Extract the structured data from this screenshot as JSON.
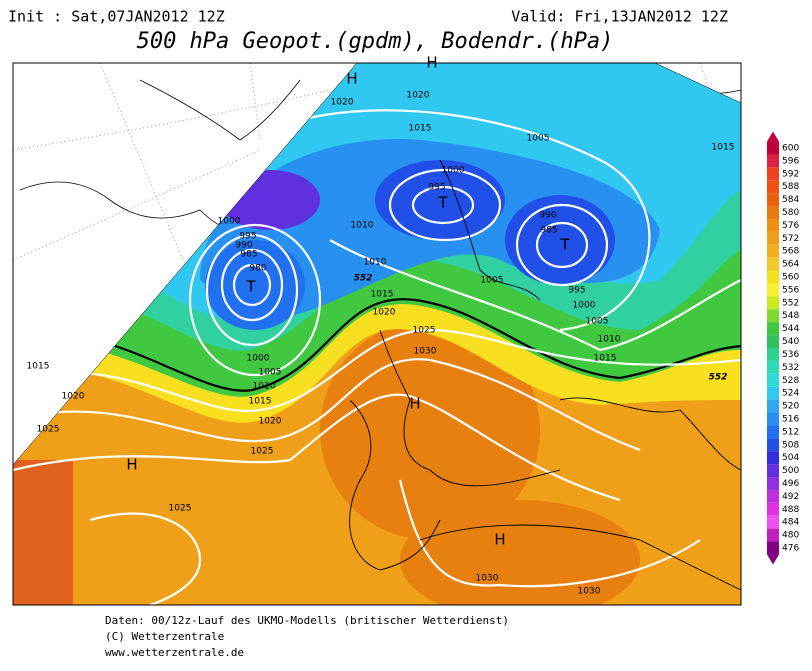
{
  "header": {
    "init": "Init : Sat,07JAN2012 12Z",
    "valid": "Valid: Fri,13JAN2012 12Z",
    "title": "500 hPa Geopot.(gpdm), Bodendr.(hPa)"
  },
  "colorbar": {
    "labels": [
      600,
      596,
      592,
      588,
      584,
      580,
      576,
      572,
      568,
      564,
      560,
      556,
      552,
      548,
      544,
      540,
      536,
      532,
      528,
      524,
      520,
      516,
      512,
      508,
      504,
      500,
      496,
      492,
      488,
      484,
      480,
      476
    ],
    "colors": [
      "#c0003c",
      "#e02040",
      "#f04020",
      "#f05010",
      "#e86010",
      "#e87810",
      "#f09010",
      "#f0a018",
      "#f0b020",
      "#f0c828",
      "#f0e020",
      "#f8f030",
      "#c8e820",
      "#80d830",
      "#40c840",
      "#30c060",
      "#30d090",
      "#30d8b8",
      "#30d8d8",
      "#30c8f0",
      "#30a8f0",
      "#2890f0",
      "#2070f0",
      "#2050e8",
      "#3030e0",
      "#6030e0",
      "#9030e0",
      "#c030e0",
      "#e030e0",
      "#f050f0",
      "#c020c0",
      "#800080"
    ]
  },
  "map": {
    "pressure_centers": [
      "H",
      "H",
      "T",
      "T",
      "T",
      "H",
      "H",
      "H"
    ],
    "isobar_labels": [
      1020,
      1020,
      1015,
      1005,
      1015,
      1000,
      995,
      990,
      985,
      1000,
      995,
      990,
      985,
      980,
      1010,
      1010,
      1015,
      1020,
      1025,
      1030,
      1005,
      995,
      1000,
      1005,
      1010,
      1015,
      1000,
      1005,
      1010,
      1015,
      1020,
      1025,
      1015,
      1020,
      1025,
      1025,
      1030,
      1030
    ],
    "contour_labels": [
      552,
      552
    ]
  },
  "footer": {
    "lines": [
      "Daten: 00/12z-Lauf des UKMO-Modells (britischer Wetterdienst)",
      "(C) Wetterzentrale",
      "www.wetterzentrale.de"
    ]
  }
}
